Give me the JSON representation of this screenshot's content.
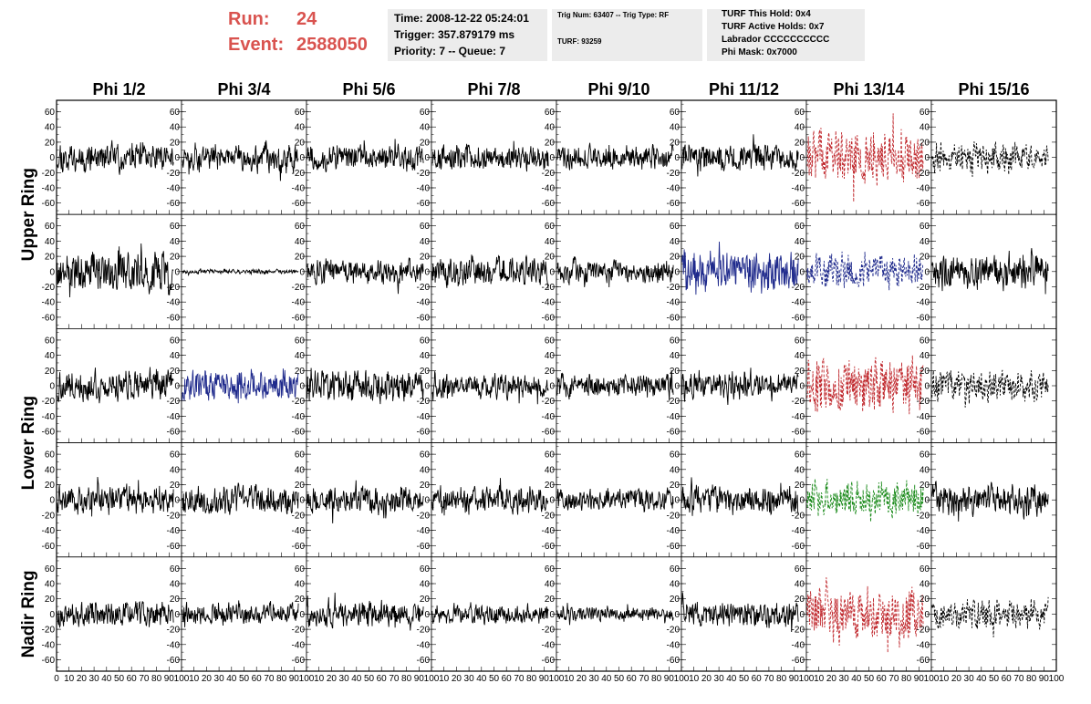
{
  "header": {
    "run_label": "Run:",
    "run_value": "24",
    "event_label": "Event:",
    "event_value": "2588050",
    "time_line": "Time: 2008-12-22 05:24:01",
    "trigger_line": "Trigger: 357.879179 ms",
    "priority_line": "Priority: 7 -- Queue: 7",
    "trig_num_line": "Trig Num: 63407 -- Trig Type: RF",
    "turf_line": "TURF: 93259",
    "turf_this_hold": "TURF This Hold: 0x4",
    "turf_active_holds": "TURF Active Holds: 0x7",
    "labrador": "Labrador CCCCCCCCCC",
    "phi_mask": "Phi Mask: 0x7000"
  },
  "colors": {
    "run_text": "#d9534f",
    "box_bg": "#ececec",
    "trace_black": "#000000",
    "trace_red": "#c0282d",
    "trace_blue": "#1f2a8c",
    "trace_green": "#1a8a1a"
  },
  "chart_data": {
    "type": "line",
    "columns": [
      "Phi 1/2",
      "Phi 3/4",
      "Phi 5/6",
      "Phi 7/8",
      "Phi 9/10",
      "Phi 11/12",
      "Phi 13/14",
      "Phi 15/16"
    ],
    "rows": [
      "Upper Ring",
      "Lower Ring",
      "Nadir Ring"
    ],
    "row_subpanels": [
      2,
      2,
      1
    ],
    "xlim": [
      0,
      100
    ],
    "ylim": [
      -75,
      75
    ],
    "x_ticks": [
      "0",
      "10",
      "20",
      "30",
      "40",
      "50",
      "60",
      "70",
      "80",
      "90",
      "100"
    ],
    "y_ticks": [
      "60",
      "40",
      "20",
      "0",
      "-20",
      "-40",
      "-60"
    ],
    "grid": false,
    "panels": [
      [
        {
          "color": "black",
          "style": "solid",
          "amplitude": 20
        },
        {
          "color": "black",
          "style": "solid",
          "amplitude": 20
        },
        {
          "color": "black",
          "style": "solid",
          "amplitude": 18
        },
        {
          "color": "black",
          "style": "solid",
          "amplitude": 18
        },
        {
          "color": "black",
          "style": "solid",
          "amplitude": 16
        },
        {
          "color": "black",
          "style": "solid",
          "amplitude": 20
        },
        {
          "color": "red",
          "style": "dashed",
          "amplitude": 38
        },
        {
          "color": "black",
          "style": "dashed",
          "amplitude": 20
        }
      ],
      [
        {
          "color": "black",
          "style": "solid",
          "amplitude": 28
        },
        {
          "color": "black",
          "style": "solid",
          "amplitude": 3
        },
        {
          "color": "black",
          "style": "solid",
          "amplitude": 18
        },
        {
          "color": "black",
          "style": "solid",
          "amplitude": 20
        },
        {
          "color": "black",
          "style": "solid",
          "amplitude": 18
        },
        {
          "color": "blue",
          "style": "solid",
          "amplitude": 30
        },
        {
          "color": "blue",
          "style": "dashed",
          "amplitude": 24
        },
        {
          "color": "black",
          "style": "solid",
          "amplitude": 25
        }
      ],
      [
        {
          "color": "black",
          "style": "solid",
          "amplitude": 22
        },
        {
          "color": "blue",
          "style": "solid",
          "amplitude": 22
        },
        {
          "color": "black",
          "style": "solid",
          "amplitude": 24
        },
        {
          "color": "black",
          "style": "solid",
          "amplitude": 18
        },
        {
          "color": "black",
          "style": "solid",
          "amplitude": 16
        },
        {
          "color": "black",
          "style": "solid",
          "amplitude": 20
        },
        {
          "color": "red",
          "style": "dashed",
          "amplitude": 40
        },
        {
          "color": "black",
          "style": "dashed",
          "amplitude": 22
        }
      ],
      [
        {
          "color": "black",
          "style": "solid",
          "amplitude": 20
        },
        {
          "color": "black",
          "style": "solid",
          "amplitude": 20
        },
        {
          "color": "black",
          "style": "solid",
          "amplitude": 20
        },
        {
          "color": "black",
          "style": "solid",
          "amplitude": 20
        },
        {
          "color": "black",
          "style": "solid",
          "amplitude": 16
        },
        {
          "color": "black",
          "style": "solid",
          "amplitude": 20
        },
        {
          "color": "green",
          "style": "dashed",
          "amplitude": 26
        },
        {
          "color": "black",
          "style": "solid",
          "amplitude": 24
        }
      ],
      [
        {
          "color": "black",
          "style": "solid",
          "amplitude": 18
        },
        {
          "color": "black",
          "style": "solid",
          "amplitude": 15
        },
        {
          "color": "black",
          "style": "solid",
          "amplitude": 18
        },
        {
          "color": "black",
          "style": "solid",
          "amplitude": 14
        },
        {
          "color": "black",
          "style": "solid",
          "amplitude": 10
        },
        {
          "color": "black",
          "style": "solid",
          "amplitude": 18
        },
        {
          "color": "red",
          "style": "dashed",
          "amplitude": 38
        },
        {
          "color": "black",
          "style": "dashed",
          "amplitude": 20
        }
      ]
    ]
  }
}
